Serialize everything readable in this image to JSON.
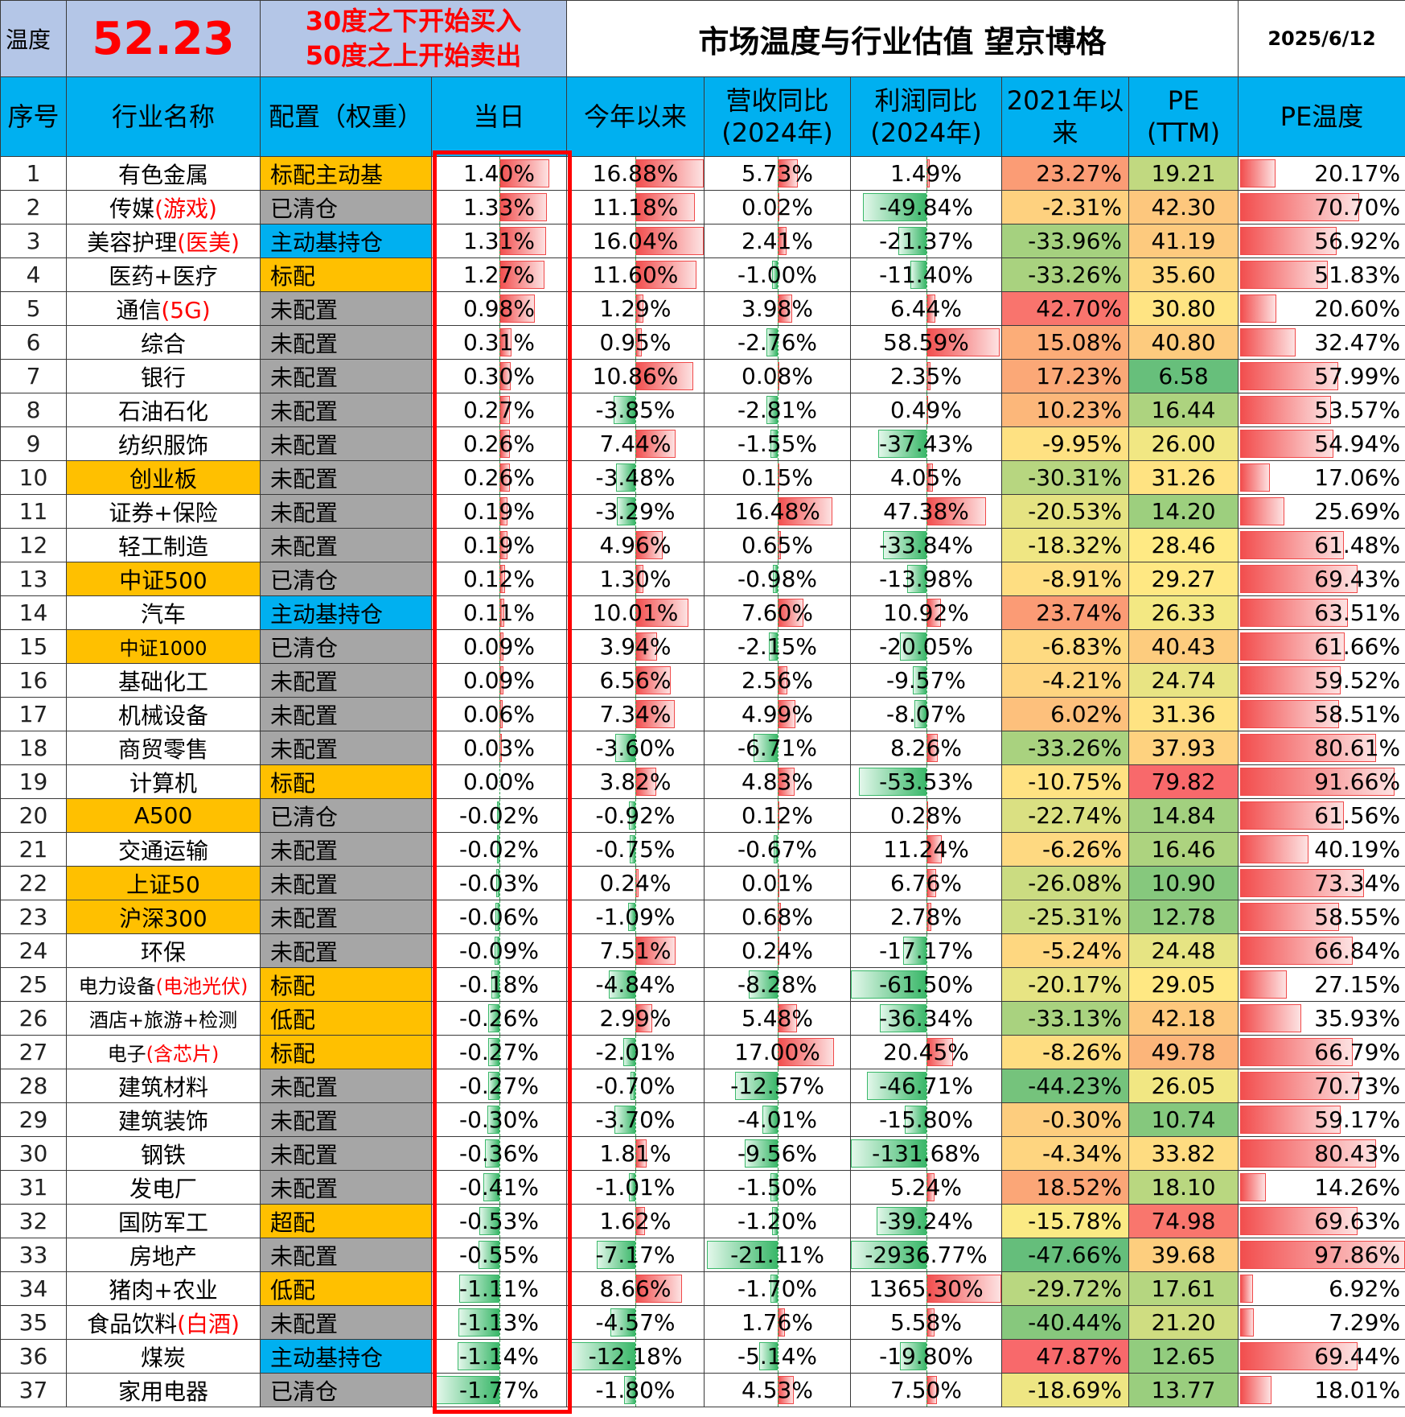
{
  "header": {
    "temp_label": "温度",
    "temp_value": "52.23",
    "rule_line1": "30度之下开始买入",
    "rule_line2": "50度之上开始卖出",
    "title": "市场温度与行业估值 望京博格",
    "date": "2025/6/12"
  },
  "columns": {
    "no": "序号",
    "name": "行业名称",
    "alloc": "配置（权重）",
    "day": "当日",
    "ytd": "今年以来",
    "rev_l1": "营收同比",
    "rev_l2": "(2024年)",
    "profit_l1": "利润同比",
    "profit_l2": "(2024年)",
    "since_l1": "2021年以",
    "since_l2": "来",
    "pe_l1": "PE",
    "pe_l2": "(TTM)",
    "petemp": "PE温度"
  },
  "colors": {
    "header_blue": "#00b0f0",
    "temp_bg": "#b4c6e7",
    "alloc_orange": "#ffc000",
    "alloc_gray": "#a6a6a6",
    "alloc_cyan": "#00b0f0",
    "highlight_red": "#ff0000"
  },
  "rows": [
    {
      "no": "1",
      "name": "有色金属",
      "name_hl": "",
      "name_bg": "",
      "alloc": "标配主动基",
      "alloc_bg": "orange",
      "day": "1.40%",
      "ytd": "16.88%",
      "rev": "5.73%",
      "profit": "1.49%",
      "since": "23.27%",
      "pe": "19.21",
      "petemp": "20.17%"
    },
    {
      "no": "2",
      "name": "传媒",
      "name_hl": "(游戏)",
      "name_bg": "",
      "alloc": "已清仓",
      "alloc_bg": "gray",
      "day": "1.33%",
      "ytd": "11.18%",
      "rev": "0.02%",
      "profit": "-49.84%",
      "since": "-2.31%",
      "pe": "42.30",
      "petemp": "70.70%"
    },
    {
      "no": "3",
      "name": "美容护理",
      "name_hl": "(医美)",
      "name_bg": "",
      "alloc": "主动基持仓",
      "alloc_bg": "cyan",
      "day": "1.31%",
      "ytd": "16.04%",
      "rev": "2.41%",
      "profit": "-21.37%",
      "since": "-33.96%",
      "pe": "41.19",
      "petemp": "56.92%"
    },
    {
      "no": "4",
      "name": "医药+医疗",
      "name_hl": "",
      "name_bg": "",
      "alloc": "标配",
      "alloc_bg": "orange",
      "day": "1.27%",
      "ytd": "11.60%",
      "rev": "-1.00%",
      "profit": "-11.40%",
      "since": "-33.26%",
      "pe": "35.60",
      "petemp": "51.83%"
    },
    {
      "no": "5",
      "name": "通信",
      "name_hl": "(5G)",
      "name_bg": "",
      "alloc": "未配置",
      "alloc_bg": "gray",
      "day": "0.98%",
      "ytd": "1.29%",
      "rev": "3.98%",
      "profit": "6.44%",
      "since": "42.70%",
      "pe": "30.80",
      "petemp": "20.60%"
    },
    {
      "no": "6",
      "name": "综合",
      "name_hl": "",
      "name_bg": "",
      "alloc": "未配置",
      "alloc_bg": "gray",
      "day": "0.31%",
      "ytd": "0.95%",
      "rev": "-2.76%",
      "profit": "58.59%",
      "since": "15.08%",
      "pe": "40.80",
      "petemp": "32.47%"
    },
    {
      "no": "7",
      "name": "银行",
      "name_hl": "",
      "name_bg": "",
      "alloc": "未配置",
      "alloc_bg": "gray",
      "day": "0.30%",
      "ytd": "10.86%",
      "rev": "0.08%",
      "profit": "2.35%",
      "since": "17.23%",
      "pe": "6.58",
      "petemp": "57.99%"
    },
    {
      "no": "8",
      "name": "石油石化",
      "name_hl": "",
      "name_bg": "",
      "alloc": "未配置",
      "alloc_bg": "gray",
      "day": "0.27%",
      "ytd": "-3.85%",
      "rev": "-2.81%",
      "profit": "0.49%",
      "since": "10.23%",
      "pe": "16.44",
      "petemp": "53.57%"
    },
    {
      "no": "9",
      "name": "纺织服饰",
      "name_hl": "",
      "name_bg": "",
      "alloc": "未配置",
      "alloc_bg": "gray",
      "day": "0.26%",
      "ytd": "7.44%",
      "rev": "-1.55%",
      "profit": "-37.43%",
      "since": "-9.95%",
      "pe": "26.00",
      "petemp": "54.94%"
    },
    {
      "no": "10",
      "name": "创业板",
      "name_hl": "",
      "name_bg": "orange",
      "alloc": "未配置",
      "alloc_bg": "gray",
      "day": "0.26%",
      "ytd": "-3.48%",
      "rev": "0.15%",
      "profit": "4.05%",
      "since": "-30.31%",
      "pe": "31.26",
      "petemp": "17.06%"
    },
    {
      "no": "11",
      "name": "证券+保险",
      "name_hl": "",
      "name_bg": "",
      "alloc": "未配置",
      "alloc_bg": "gray",
      "day": "0.19%",
      "ytd": "-3.29%",
      "rev": "16.48%",
      "profit": "47.38%",
      "since": "-20.53%",
      "pe": "14.20",
      "petemp": "25.69%"
    },
    {
      "no": "12",
      "name": "轻工制造",
      "name_hl": "",
      "name_bg": "",
      "alloc": "未配置",
      "alloc_bg": "gray",
      "day": "0.19%",
      "ytd": "4.96%",
      "rev": "0.65%",
      "profit": "-33.84%",
      "since": "-18.32%",
      "pe": "28.46",
      "petemp": "61.48%"
    },
    {
      "no": "13",
      "name": "中证500",
      "name_hl": "",
      "name_bg": "orange",
      "alloc": "已清仓",
      "alloc_bg": "gray",
      "day": "0.12%",
      "ytd": "1.30%",
      "rev": "-0.98%",
      "profit": "-13.98%",
      "since": "-8.91%",
      "pe": "29.27",
      "petemp": "69.43%"
    },
    {
      "no": "14",
      "name": "汽车",
      "name_hl": "",
      "name_bg": "",
      "alloc": "主动基持仓",
      "alloc_bg": "cyan",
      "day": "0.11%",
      "ytd": "10.01%",
      "rev": "7.60%",
      "profit": "10.92%",
      "since": "23.74%",
      "pe": "26.33",
      "petemp": "63.51%"
    },
    {
      "no": "15",
      "name": "中证1000",
      "name_hl": "",
      "name_bg": "orange",
      "alloc": "已清仓",
      "alloc_bg": "gray",
      "day": "0.09%",
      "ytd": "3.94%",
      "rev": "-2.15%",
      "profit": "-20.05%",
      "since": "-6.83%",
      "pe": "40.43",
      "petemp": "61.66%"
    },
    {
      "no": "16",
      "name": "基础化工",
      "name_hl": "",
      "name_bg": "",
      "alloc": "未配置",
      "alloc_bg": "gray",
      "day": "0.09%",
      "ytd": "6.56%",
      "rev": "2.56%",
      "profit": "-9.57%",
      "since": "-4.21%",
      "pe": "24.74",
      "petemp": "59.52%"
    },
    {
      "no": "17",
      "name": "机械设备",
      "name_hl": "",
      "name_bg": "",
      "alloc": "未配置",
      "alloc_bg": "gray",
      "day": "0.06%",
      "ytd": "7.34%",
      "rev": "4.99%",
      "profit": "-8.07%",
      "since": "6.02%",
      "pe": "31.36",
      "petemp": "58.51%"
    },
    {
      "no": "18",
      "name": "商贸零售",
      "name_hl": "",
      "name_bg": "",
      "alloc": "未配置",
      "alloc_bg": "gray",
      "day": "0.03%",
      "ytd": "-3.60%",
      "rev": "-6.71%",
      "profit": "8.26%",
      "since": "-33.26%",
      "pe": "37.93",
      "petemp": "80.61%"
    },
    {
      "no": "19",
      "name": "计算机",
      "name_hl": "",
      "name_bg": "",
      "alloc": "标配",
      "alloc_bg": "orange",
      "day": "0.00%",
      "ytd": "3.82%",
      "rev": "4.83%",
      "profit": "-53.53%",
      "since": "-10.75%",
      "pe": "79.82",
      "petemp": "91.66%"
    },
    {
      "no": "20",
      "name": "A500",
      "name_hl": "",
      "name_bg": "orange",
      "alloc": "已清仓",
      "alloc_bg": "gray",
      "day": "-0.02%",
      "ytd": "-0.92%",
      "rev": "0.12%",
      "profit": "0.28%",
      "since": "-22.74%",
      "pe": "14.84",
      "petemp": "61.56%"
    },
    {
      "no": "21",
      "name": "交通运输",
      "name_hl": "",
      "name_bg": "",
      "alloc": "未配置",
      "alloc_bg": "gray",
      "day": "-0.02%",
      "ytd": "-0.75%",
      "rev": "-0.67%",
      "profit": "11.24%",
      "since": "-6.26%",
      "pe": "16.46",
      "petemp": "40.19%"
    },
    {
      "no": "22",
      "name": "上证50",
      "name_hl": "",
      "name_bg": "orange",
      "alloc": "未配置",
      "alloc_bg": "gray",
      "day": "-0.03%",
      "ytd": "0.24%",
      "rev": "0.01%",
      "profit": "6.76%",
      "since": "-26.08%",
      "pe": "10.90",
      "petemp": "73.34%"
    },
    {
      "no": "23",
      "name": "沪深300",
      "name_hl": "",
      "name_bg": "orange",
      "alloc": "未配置",
      "alloc_bg": "gray",
      "day": "-0.06%",
      "ytd": "-1.09%",
      "rev": "0.68%",
      "profit": "2.78%",
      "since": "-25.31%",
      "pe": "12.78",
      "petemp": "58.55%"
    },
    {
      "no": "24",
      "name": "环保",
      "name_hl": "",
      "name_bg": "",
      "alloc": "未配置",
      "alloc_bg": "gray",
      "day": "-0.09%",
      "ytd": "7.51%",
      "rev": "0.24%",
      "profit": "-17.17%",
      "since": "-5.24%",
      "pe": "24.48",
      "petemp": "66.84%"
    },
    {
      "no": "25",
      "name": "电力设备",
      "name_hl": "(电池光伏)",
      "name_bg": "",
      "alloc": "标配",
      "alloc_bg": "orange",
      "day": "-0.18%",
      "ytd": "-4.84%",
      "rev": "-8.28%",
      "profit": "-61.50%",
      "since": "-20.17%",
      "pe": "29.05",
      "petemp": "27.15%"
    },
    {
      "no": "26",
      "name": "酒店+旅游+检测",
      "name_hl": "",
      "name_bg": "",
      "alloc": "低配",
      "alloc_bg": "orange",
      "day": "-0.26%",
      "ytd": "2.99%",
      "rev": "5.48%",
      "profit": "-36.34%",
      "since": "-33.13%",
      "pe": "42.18",
      "petemp": "35.93%"
    },
    {
      "no": "27",
      "name": "电子",
      "name_hl": "(含芯片)",
      "name_bg": "",
      "alloc": "标配",
      "alloc_bg": "orange",
      "day": "-0.27%",
      "ytd": "-2.01%",
      "rev": "17.00%",
      "profit": "20.45%",
      "since": "-8.26%",
      "pe": "49.78",
      "petemp": "66.79%"
    },
    {
      "no": "28",
      "name": "建筑材料",
      "name_hl": "",
      "name_bg": "",
      "alloc": "未配置",
      "alloc_bg": "gray",
      "day": "-0.27%",
      "ytd": "-0.70%",
      "rev": "-12.57%",
      "profit": "-46.71%",
      "since": "-44.23%",
      "pe": "26.05",
      "petemp": "70.73%"
    },
    {
      "no": "29",
      "name": "建筑装饰",
      "name_hl": "",
      "name_bg": "",
      "alloc": "未配置",
      "alloc_bg": "gray",
      "day": "-0.30%",
      "ytd": "-3.70%",
      "rev": "-4.01%",
      "profit": "-15.80%",
      "since": "-0.30%",
      "pe": "10.74",
      "petemp": "59.17%"
    },
    {
      "no": "30",
      "name": "钢铁",
      "name_hl": "",
      "name_bg": "",
      "alloc": "未配置",
      "alloc_bg": "gray",
      "day": "-0.36%",
      "ytd": "1.81%",
      "rev": "-9.56%",
      "profit": "-131.68%",
      "since": "-4.34%",
      "pe": "33.82",
      "petemp": "80.43%"
    },
    {
      "no": "31",
      "name": "发电厂",
      "name_hl": "",
      "name_bg": "",
      "alloc": "未配置",
      "alloc_bg": "gray",
      "day": "-0.41%",
      "ytd": "-1.01%",
      "rev": "-1.50%",
      "profit": "5.24%",
      "since": "18.52%",
      "pe": "18.10",
      "petemp": "14.26%"
    },
    {
      "no": "32",
      "name": "国防军工",
      "name_hl": "",
      "name_bg": "",
      "alloc": "超配",
      "alloc_bg": "orange",
      "day": "-0.53%",
      "ytd": "1.62%",
      "rev": "-1.20%",
      "profit": "-39.24%",
      "since": "-15.78%",
      "pe": "74.98",
      "petemp": "69.63%"
    },
    {
      "no": "33",
      "name": "房地产",
      "name_hl": "",
      "name_bg": "",
      "alloc": "未配置",
      "alloc_bg": "gray",
      "day": "-0.55%",
      "ytd": "-7.17%",
      "rev": "-21.11%",
      "profit": "-2936.77%",
      "since": "-47.66%",
      "pe": "39.68",
      "petemp": "97.86%"
    },
    {
      "no": "34",
      "name": "猪肉+农业",
      "name_hl": "",
      "name_bg": "",
      "alloc": "低配",
      "alloc_bg": "orange",
      "day": "-1.11%",
      "ytd": "8.66%",
      "rev": "-1.70%",
      "profit": "1365.30%",
      "since": "-29.72%",
      "pe": "17.61",
      "petemp": "6.92%"
    },
    {
      "no": "35",
      "name": "食品饮料",
      "name_hl": "(白酒)",
      "name_bg": "",
      "alloc": "未配置",
      "alloc_bg": "gray",
      "day": "-1.13%",
      "ytd": "-4.57%",
      "rev": "1.76%",
      "profit": "5.58%",
      "since": "-40.44%",
      "pe": "21.20",
      "petemp": "7.29%"
    },
    {
      "no": "36",
      "name": "煤炭",
      "name_hl": "",
      "name_bg": "",
      "alloc": "主动基持仓",
      "alloc_bg": "cyan",
      "day": "-1.14%",
      "ytd": "-12.18%",
      "rev": "-5.14%",
      "profit": "-19.80%",
      "since": "47.87%",
      "pe": "12.65",
      "petemp": "69.44%"
    },
    {
      "no": "37",
      "name": "家用电器",
      "name_hl": "",
      "name_bg": "",
      "alloc": "已清仓",
      "alloc_bg": "gray",
      "day": "-1.77%",
      "ytd": "-1.80%",
      "rev": "4.53%",
      "profit": "7.50%",
      "since": "-18.69%",
      "pe": "13.77",
      "petemp": "18.01%"
    }
  ]
}
